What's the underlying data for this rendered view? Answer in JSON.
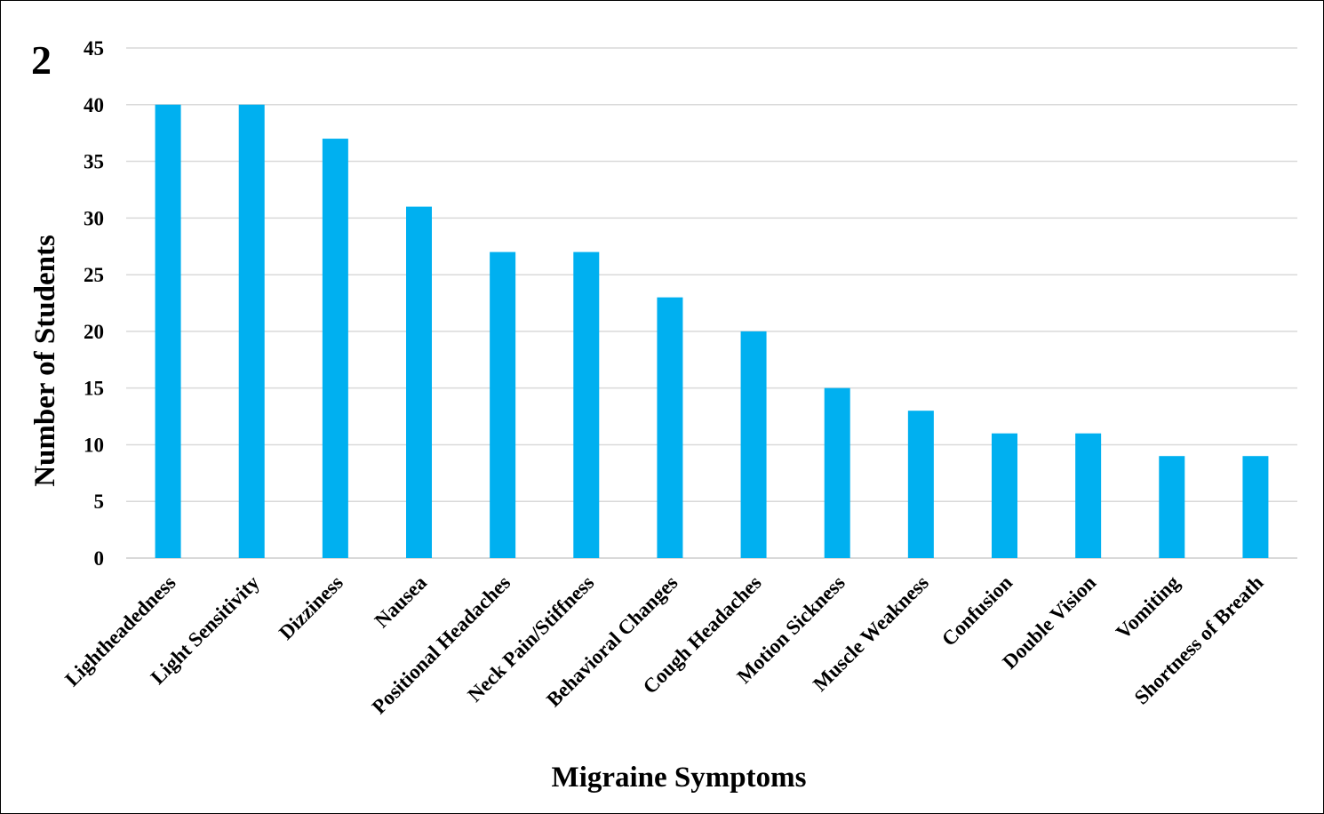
{
  "panel_label": "2",
  "chart_data": {
    "type": "bar",
    "categories": [
      "Lightheadedness",
      "Light Sensitivity",
      "Dizziness",
      "Nausea",
      "Positional Headaches",
      "Neck Pain/Stiffness",
      "Behavioral Changes",
      "Cough Headaches",
      "Motion Sickness",
      "Muscle Weakness",
      "Confusion",
      "Double Vision",
      "Vomiting",
      "Shortness of Breath"
    ],
    "values": [
      40,
      40,
      37,
      31,
      27,
      27,
      23,
      20,
      15,
      13,
      11,
      11,
      9,
      9
    ],
    "xlabel": "Migraine Symptoms",
    "ylabel": "Number of Students",
    "ylim": [
      0,
      45
    ],
    "yticks": [
      0,
      5,
      10,
      15,
      20,
      25,
      30,
      35,
      40,
      45
    ],
    "grid": true,
    "legend": "none",
    "bar_color": "#00b0f0",
    "grid_color": "#d9d9d9"
  }
}
